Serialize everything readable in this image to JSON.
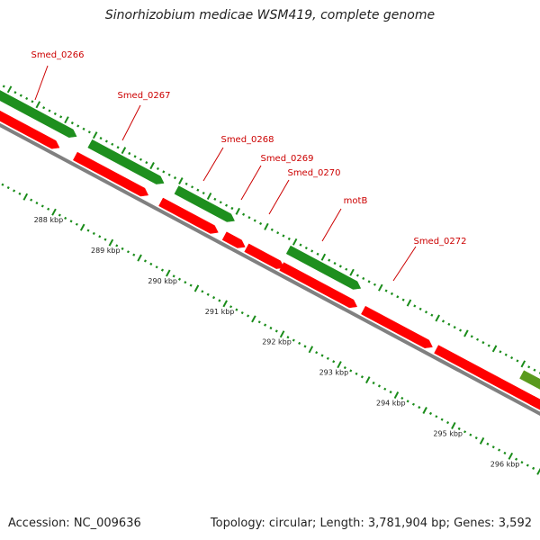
{
  "title": "Sinorhizobium medicae WSM419, complete genome",
  "footer": {
    "accession": "Accession: NC_009636",
    "summary": "Topology: circular; Length: 3,781,904 bp; Genes: 3,592"
  },
  "colors": {
    "forward_gene": "#1e8f1e",
    "reverse_gene": "#ff0000",
    "other_gene": "#5a9a1e",
    "backbone": "#808080",
    "label": "#cc0000",
    "tick": "#1a8c1a"
  },
  "scale": {
    "labels": [
      {
        "kbp": 288,
        "text": "288 kbp"
      },
      {
        "kbp": 289,
        "text": "289 kbp"
      },
      {
        "kbp": 290,
        "text": "290 kbp"
      },
      {
        "kbp": 291,
        "text": "291 kbp"
      },
      {
        "kbp": 292,
        "text": "292 kbp"
      },
      {
        "kbp": 293,
        "text": "293 kbp"
      },
      {
        "kbp": 294,
        "text": "294 kbp"
      },
      {
        "kbp": 295,
        "text": "295 kbp"
      },
      {
        "kbp": 296,
        "text": "296 kbp"
      }
    ]
  },
  "labels": [
    {
      "text": "Smed_0266"
    },
    {
      "text": "Smed_0267"
    },
    {
      "text": "Smed_0268"
    },
    {
      "text": "Smed_0269"
    },
    {
      "text": "Smed_0270"
    },
    {
      "text": "motB"
    },
    {
      "text": "Smed_0272"
    }
  ]
}
